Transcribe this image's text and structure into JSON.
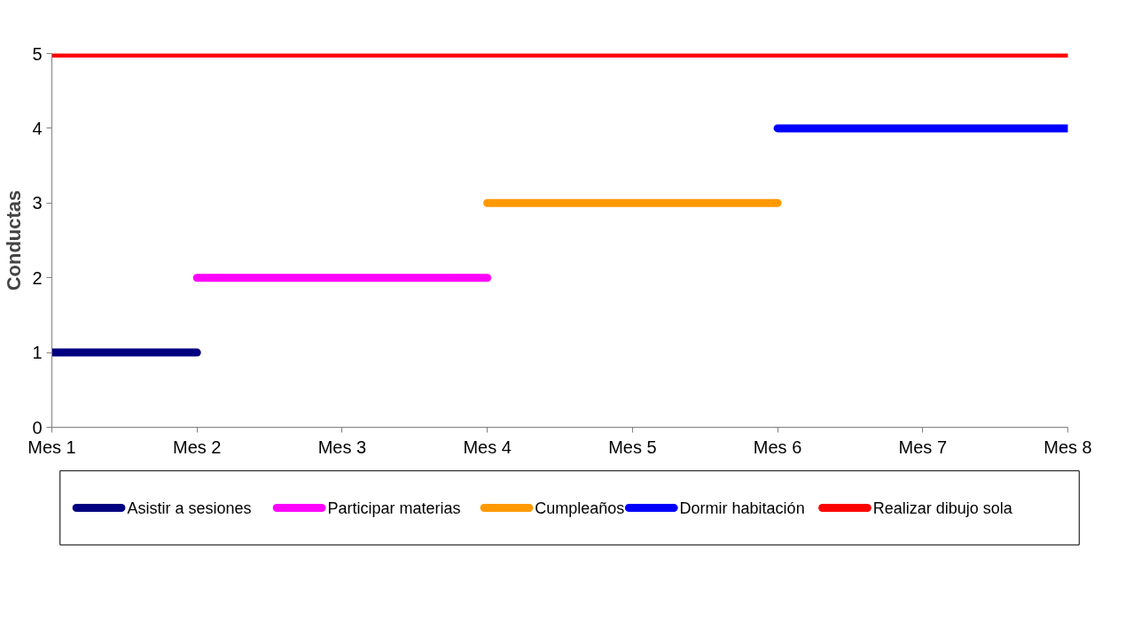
{
  "chart_data": {
    "type": "line",
    "ylabel": "Conductas",
    "categories": [
      "Mes 1",
      "Mes 2",
      "Mes 3",
      "Mes 4",
      "Mes 5",
      "Mes 6",
      "Mes 7",
      "Mes 8"
    ],
    "series": [
      {
        "name": "Asistir a sesiones",
        "color": "#000080",
        "values": [
          1,
          1,
          null,
          null,
          null,
          null,
          null,
          null
        ]
      },
      {
        "name": "Participar materias",
        "color": "#ff00ff",
        "values": [
          null,
          2,
          2,
          2,
          null,
          null,
          null,
          null
        ]
      },
      {
        "name": "Cumpleaños",
        "color": "#ff9900",
        "values": [
          null,
          null,
          null,
          3,
          3,
          3,
          null,
          null
        ]
      },
      {
        "name": "Dormir habitación",
        "color": "#0000ff",
        "values": [
          null,
          null,
          null,
          null,
          null,
          4,
          4,
          4
        ]
      },
      {
        "name": "Realizar dibujo sola",
        "color": "#ff0000",
        "values": [
          5,
          5,
          5,
          5,
          5,
          5,
          5,
          5
        ]
      }
    ],
    "ylim": [
      0,
      5
    ],
    "yticks": [
      0,
      1,
      2,
      3,
      4,
      5
    ],
    "grid": false,
    "legend": "bottom",
    "line_style": "solid",
    "marker": "none"
  }
}
